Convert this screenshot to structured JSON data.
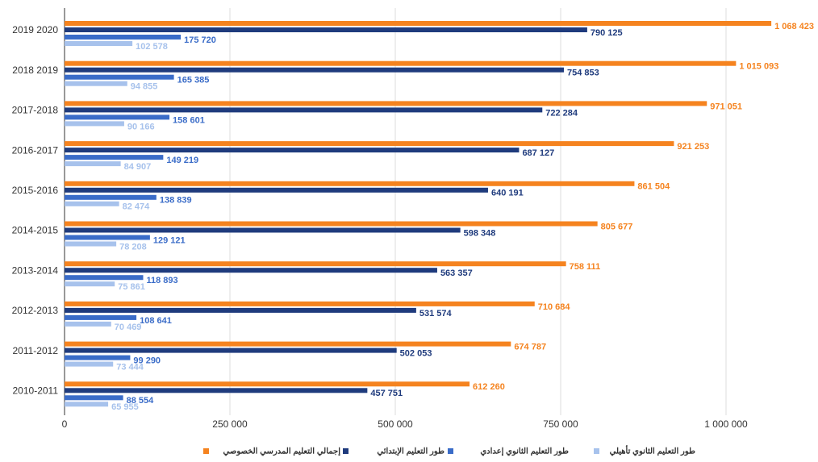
{
  "chart_data": {
    "type": "hbar",
    "categories": [
      "2019 2020",
      "2018 2019",
      "2017-2018",
      "2016-2017",
      "2015-2016",
      "2014-2015",
      "2013-2014",
      "2012-2013",
      "2011-2012",
      "2010-2011"
    ],
    "series": [
      {
        "name": "إجمالي التعليم المدرسي الخصوصي",
        "color": "#f5831f",
        "values": [
          1068423,
          1015093,
          971051,
          921253,
          861504,
          805677,
          758111,
          710684,
          674787,
          612260
        ],
        "value_labels": [
          "1 068 423",
          "1 015 093",
          "971 051",
          "921 253",
          "861 504",
          "805 677",
          "758 111",
          "710 684",
          "674 787",
          "612 260"
        ]
      },
      {
        "name": "طور التعليم الإبتدائي",
        "color": "#1f3b7d",
        "values": [
          790125,
          754853,
          722284,
          687127,
          640191,
          598348,
          563357,
          531574,
          502053,
          457751
        ],
        "value_labels": [
          "790 125",
          "754 853",
          "722 284",
          "687 127",
          "640 191",
          "598 348",
          "563 357",
          "531 574",
          "502 053",
          "457 751"
        ]
      },
      {
        "name": "طور التعليم الثانوي إعدادي",
        "color": "#3a6cc8",
        "values": [
          175720,
          165385,
          158601,
          149219,
          138839,
          129121,
          118893,
          108641,
          99290,
          88554
        ],
        "value_labels": [
          "175 720",
          "165 385",
          "158 601",
          "149 219",
          "138 839",
          "129 121",
          "118 893",
          "108 641",
          "99 290",
          "88 554"
        ]
      },
      {
        "name": "طور التعليم الثانوي تأهيلي",
        "color": "#a7c2ec",
        "values": [
          102578,
          94855,
          90166,
          84907,
          82474,
          78208,
          75861,
          70469,
          73444,
          65955
        ],
        "value_labels": [
          "102 578",
          "94 855",
          "90 166",
          "84 907",
          "82 474",
          "78 208",
          "75 861",
          "70 469",
          "73 444",
          "65 955"
        ]
      }
    ],
    "xlim": [
      0,
      1100000
    ],
    "xticks": [
      0,
      {
        "value": 250000,
        "label": "250 000"
      },
      {
        "value": 500000,
        "label": "500 000"
      },
      {
        "value": 750000,
        "label": "750 000"
      },
      {
        "value": 1000000,
        "label": "1 000 000"
      }
    ],
    "grid": true,
    "legend": "bottom"
  }
}
